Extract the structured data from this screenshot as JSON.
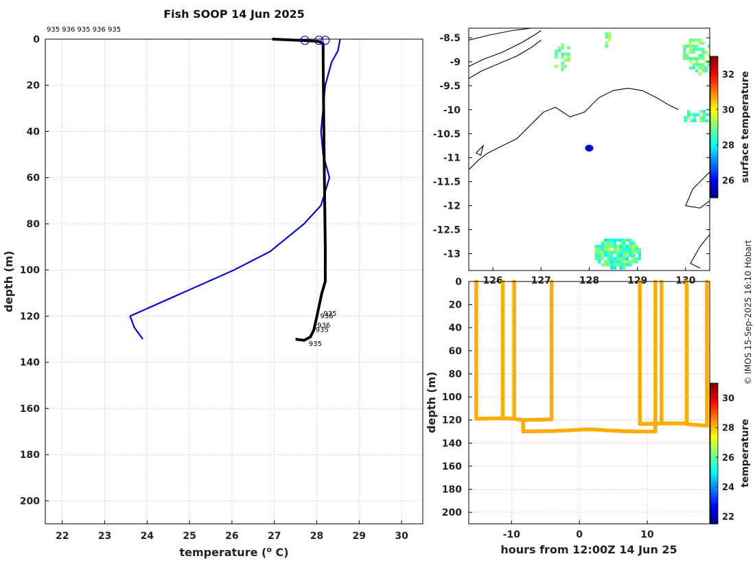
{
  "chart_data": [
    {
      "id": "profile",
      "type": "line",
      "title": "Fish SOOP 14 Jun 2025",
      "xlabel": "temperature (",
      "xlabel_sup": "o",
      "xlabel_end": " C)",
      "ylabel": "depth (m)",
      "xlim": [
        21.6,
        30.5
      ],
      "ylim": [
        0,
        210
      ],
      "y_reversed": true,
      "xticks": [
        22,
        23,
        24,
        25,
        26,
        27,
        28,
        29,
        30
      ],
      "yticks": [
        0,
        20,
        40,
        60,
        80,
        100,
        120,
        140,
        160,
        180,
        200
      ],
      "grid": true,
      "top_annotation": "935 936 935 936 935",
      "series": [
        {
          "role": "climatology",
          "color": "#0000dd",
          "points": [
            [
              28.55,
              0
            ],
            [
              28.5,
              5
            ],
            [
              28.35,
              10
            ],
            [
              28.2,
              20
            ],
            [
              28.1,
              40
            ],
            [
              28.15,
              50
            ],
            [
              28.3,
              60
            ],
            [
              28.1,
              72
            ],
            [
              27.7,
              80
            ],
            [
              26.9,
              92
            ],
            [
              26.05,
              100
            ],
            [
              23.6,
              120
            ],
            [
              23.7,
              125
            ],
            [
              23.9,
              130
            ]
          ]
        },
        {
          "role": "observed",
          "color": "#000000",
          "points": [
            [
              26.95,
              0
            ],
            [
              27.7,
              0.6
            ],
            [
              28.05,
              1
            ],
            [
              28.15,
              2
            ],
            [
              28.15,
              10
            ],
            [
              28.18,
              60
            ],
            [
              28.2,
              90
            ],
            [
              28.2,
              105
            ],
            [
              28.12,
              110
            ],
            [
              28.05,
              116
            ],
            [
              27.98,
              122
            ],
            [
              27.93,
              126
            ],
            [
              27.85,
              129
            ],
            [
              27.7,
              130.5
            ],
            [
              27.5,
              130
            ]
          ]
        }
      ],
      "markers": {
        "color": "#0000dd",
        "points": [
          [
            27.72,
            0.5
          ],
          [
            28.05,
            0.5
          ],
          [
            28.2,
            0.5
          ]
        ]
      },
      "labels": [
        {
          "text": "935",
          "x": 28.16,
          "y": 119
        },
        {
          "text": "936",
          "x": 28.08,
          "y": 120
        },
        {
          "text": "936",
          "x": 28.01,
          "y": 124
        },
        {
          "text": "935",
          "x": 27.97,
          "y": 126
        },
        {
          "text": "935",
          "x": 27.81,
          "y": 132
        }
      ]
    },
    {
      "id": "map",
      "type": "heatmap",
      "xlim": [
        125.5,
        130.5
      ],
      "ylim": [
        -13.35,
        -8.3
      ],
      "xticks": [
        126,
        127,
        128,
        129,
        130
      ],
      "yticks": [
        -8.5,
        -9,
        -9.5,
        -10,
        -10.5,
        -11,
        -11.5,
        -12,
        -12.5,
        -13
      ],
      "ytick_labels": [
        "-8.5",
        "-9",
        "-9.5",
        "-10",
        "-10.5",
        "-11",
        "-11.5",
        "-12",
        "-12.5",
        "-13"
      ],
      "colorbar": {
        "label": "surface temperature",
        "range": [
          25,
          33
        ],
        "ticks": [
          26,
          28,
          30,
          32
        ]
      },
      "position_marker": {
        "lon": 128.0,
        "lat": -10.8,
        "color": "#0000dd"
      },
      "coastlines": [
        [
          [
            125.5,
            -8.55
          ],
          [
            125.9,
            -8.45
          ],
          [
            126.4,
            -8.35
          ],
          [
            126.8,
            -8.3
          ],
          [
            127.0,
            -8.3
          ]
        ],
        [
          [
            125.5,
            -9.1
          ],
          [
            125.8,
            -8.95
          ],
          [
            126.2,
            -8.8
          ],
          [
            126.6,
            -8.6
          ],
          [
            126.85,
            -8.45
          ],
          [
            127.0,
            -8.35
          ]
        ],
        [
          [
            125.5,
            -9.35
          ],
          [
            125.75,
            -9.2
          ],
          [
            126.1,
            -9.05
          ],
          [
            126.5,
            -8.88
          ],
          [
            126.8,
            -8.7
          ],
          [
            127.0,
            -8.55
          ]
        ],
        [
          [
            125.5,
            -11.25
          ],
          [
            125.7,
            -11.05
          ],
          [
            125.9,
            -10.9
          ],
          [
            126.2,
            -10.75
          ],
          [
            126.5,
            -10.6
          ],
          [
            126.8,
            -10.3
          ],
          [
            127.05,
            -10.05
          ],
          [
            127.3,
            -9.95
          ],
          [
            127.6,
            -10.15
          ],
          [
            127.9,
            -10.05
          ],
          [
            128.2,
            -9.75
          ],
          [
            128.5,
            -9.6
          ],
          [
            128.8,
            -9.55
          ],
          [
            129.1,
            -9.6
          ],
          [
            129.4,
            -9.75
          ],
          [
            129.65,
            -9.9
          ],
          [
            129.85,
            -10.0
          ]
        ],
        [
          [
            125.65,
            -10.9
          ],
          [
            125.8,
            -10.75
          ],
          [
            125.75,
            -10.95
          ],
          [
            125.65,
            -10.9
          ]
        ],
        [
          [
            130.5,
            -11.3
          ],
          [
            130.15,
            -11.65
          ],
          [
            130.0,
            -12.0
          ],
          [
            130.3,
            -12.05
          ],
          [
            130.5,
            -11.9
          ]
        ],
        [
          [
            130.5,
            -12.6
          ],
          [
            130.3,
            -12.85
          ],
          [
            130.1,
            -13.2
          ],
          [
            130.3,
            -13.3
          ]
        ]
      ],
      "sst_patches": [
        {
          "lon": 128.55,
          "lat": -12.95,
          "rlon": 0.5,
          "rlat": 0.33,
          "density": 0.9,
          "temps": [
            27.8,
            29.5
          ]
        },
        {
          "lon": 127.4,
          "lat": -8.85,
          "rlon": 0.18,
          "rlat": 0.3,
          "density": 0.45,
          "temps": [
            28.2,
            29.3
          ]
        },
        {
          "lon": 128.35,
          "lat": -8.5,
          "rlon": 0.09,
          "rlat": 0.18,
          "density": 0.7,
          "temps": [
            28.5,
            29.5
          ]
        },
        {
          "lon": 130.2,
          "lat": -8.85,
          "rlon": 0.32,
          "rlat": 0.4,
          "density": 0.55,
          "temps": [
            28.3,
            29.4
          ]
        },
        {
          "lon": 130.2,
          "lat": -10.1,
          "rlon": 0.3,
          "rlat": 0.16,
          "density": 0.7,
          "temps": [
            28.0,
            29.2
          ]
        }
      ]
    },
    {
      "id": "timeseries",
      "type": "scatter",
      "xlabel": "hours from 12:00Z 14 Jun 25",
      "ylabel": "depth (m)",
      "xlim": [
        -16.3,
        19.2
      ],
      "ylim": [
        0,
        210
      ],
      "y_reversed": true,
      "xticks": [
        -10,
        0,
        10
      ],
      "yticks": [
        0,
        20,
        40,
        60,
        80,
        100,
        120,
        140,
        160,
        180,
        200
      ],
      "colorbar": {
        "label": "temperature",
        "range": [
          21.5,
          31
        ],
        "ticks": [
          22,
          24,
          26,
          28,
          30
        ]
      },
      "point_color_temp": 28.2,
      "path": [
        [
          -15.2,
          0
        ],
        [
          -15.2,
          119
        ],
        [
          -11.3,
          118.5
        ],
        [
          -11.3,
          0
        ],
        [
          -11.3,
          118.5
        ],
        [
          -9.6,
          119
        ],
        [
          -9.6,
          0
        ],
        [
          -9.6,
          119
        ],
        [
          -8.3,
          120
        ],
        [
          -8.3,
          130
        ],
        [
          -4,
          129.5
        ],
        [
          0,
          128.5
        ],
        [
          1.5,
          128
        ],
        [
          4,
          129
        ],
        [
          8,
          130
        ],
        [
          11.2,
          130
        ],
        [
          11.2,
          0
        ],
        [
          11.2,
          123
        ],
        [
          8.9,
          123.5
        ],
        [
          8.9,
          0
        ],
        [
          8.9,
          123.5
        ],
        [
          12.1,
          123
        ],
        [
          12.1,
          0
        ],
        [
          12.1,
          123
        ],
        [
          15.8,
          123
        ],
        [
          15.8,
          0
        ],
        [
          15.8,
          123.5
        ],
        [
          18.8,
          125
        ],
        [
          18.8,
          0
        ]
      ],
      "path2": [
        [
          -8.3,
          120
        ],
        [
          -4.1,
          119.5
        ],
        [
          -4.1,
          0
        ]
      ]
    }
  ],
  "credit": "© IMOS 15-Sep-2025 16:10 Hobart"
}
